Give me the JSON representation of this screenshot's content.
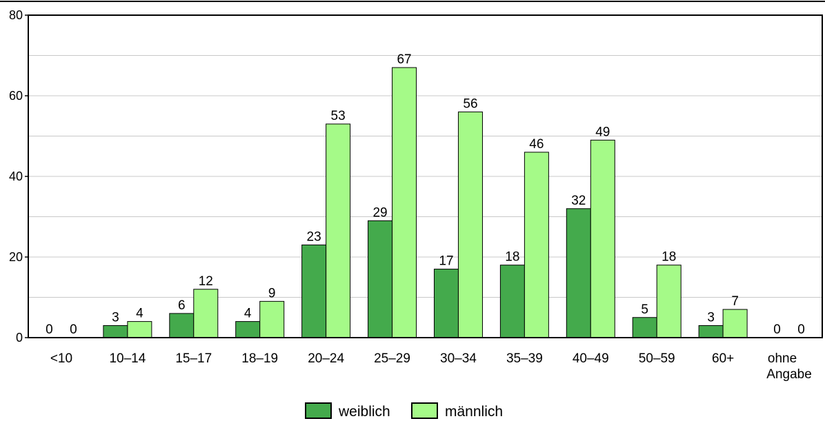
{
  "chart_data": {
    "type": "bar",
    "title": "",
    "xlabel": "",
    "ylabel": "",
    "ylim": [
      0,
      80
    ],
    "yticks": [
      0,
      20,
      40,
      60,
      80
    ],
    "grid": true,
    "legend": "bottom",
    "categories": [
      "<10",
      "10–14",
      "15–17",
      "18–19",
      "20–24",
      "25–29",
      "30–34",
      "35–39",
      "40–49",
      "50–59",
      "60+",
      "ohne Angabe"
    ],
    "series": [
      {
        "name": "weiblich",
        "color": "#44aa4c",
        "values": [
          0,
          3,
          6,
          4,
          23,
          29,
          17,
          18,
          32,
          5,
          3,
          0
        ]
      },
      {
        "name": "männlich",
        "color": "#a5fa88",
        "values": [
          0,
          4,
          12,
          9,
          53,
          67,
          56,
          46,
          49,
          18,
          7,
          0
        ]
      }
    ]
  }
}
